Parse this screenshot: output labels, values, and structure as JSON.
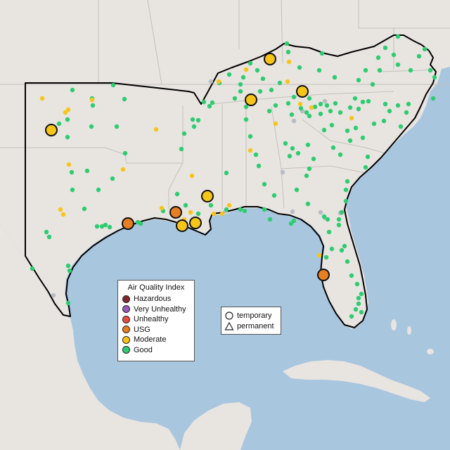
{
  "legend": {
    "title": "Air Quality Index",
    "items": [
      {
        "key": "hazardous",
        "label": "Hazardous",
        "color": "#7e2a2a"
      },
      {
        "key": "very_unhealthy",
        "label": "Very Unhealthy",
        "color": "#9b59b6"
      },
      {
        "key": "unhealthy",
        "label": "Unhealthy",
        "color": "#e74c3c"
      },
      {
        "key": "usg",
        "label": "USG",
        "color": "#e67e22"
      },
      {
        "key": "moderate",
        "label": "Moderate",
        "color": "#f5c518"
      },
      {
        "key": "good",
        "label": "Good",
        "color": "#2ecc71"
      }
    ]
  },
  "monitor_type_legend": {
    "items": [
      {
        "key": "temporary",
        "label": "temporary",
        "symbol": "circle"
      },
      {
        "key": "permanent",
        "label": "permanent",
        "symbol": "triangle"
      }
    ]
  },
  "colors": {
    "land": "#e8e4e0",
    "water": "#a9c6df",
    "no_data": "#b8bcc4",
    "region_outline": "#000000"
  }
}
